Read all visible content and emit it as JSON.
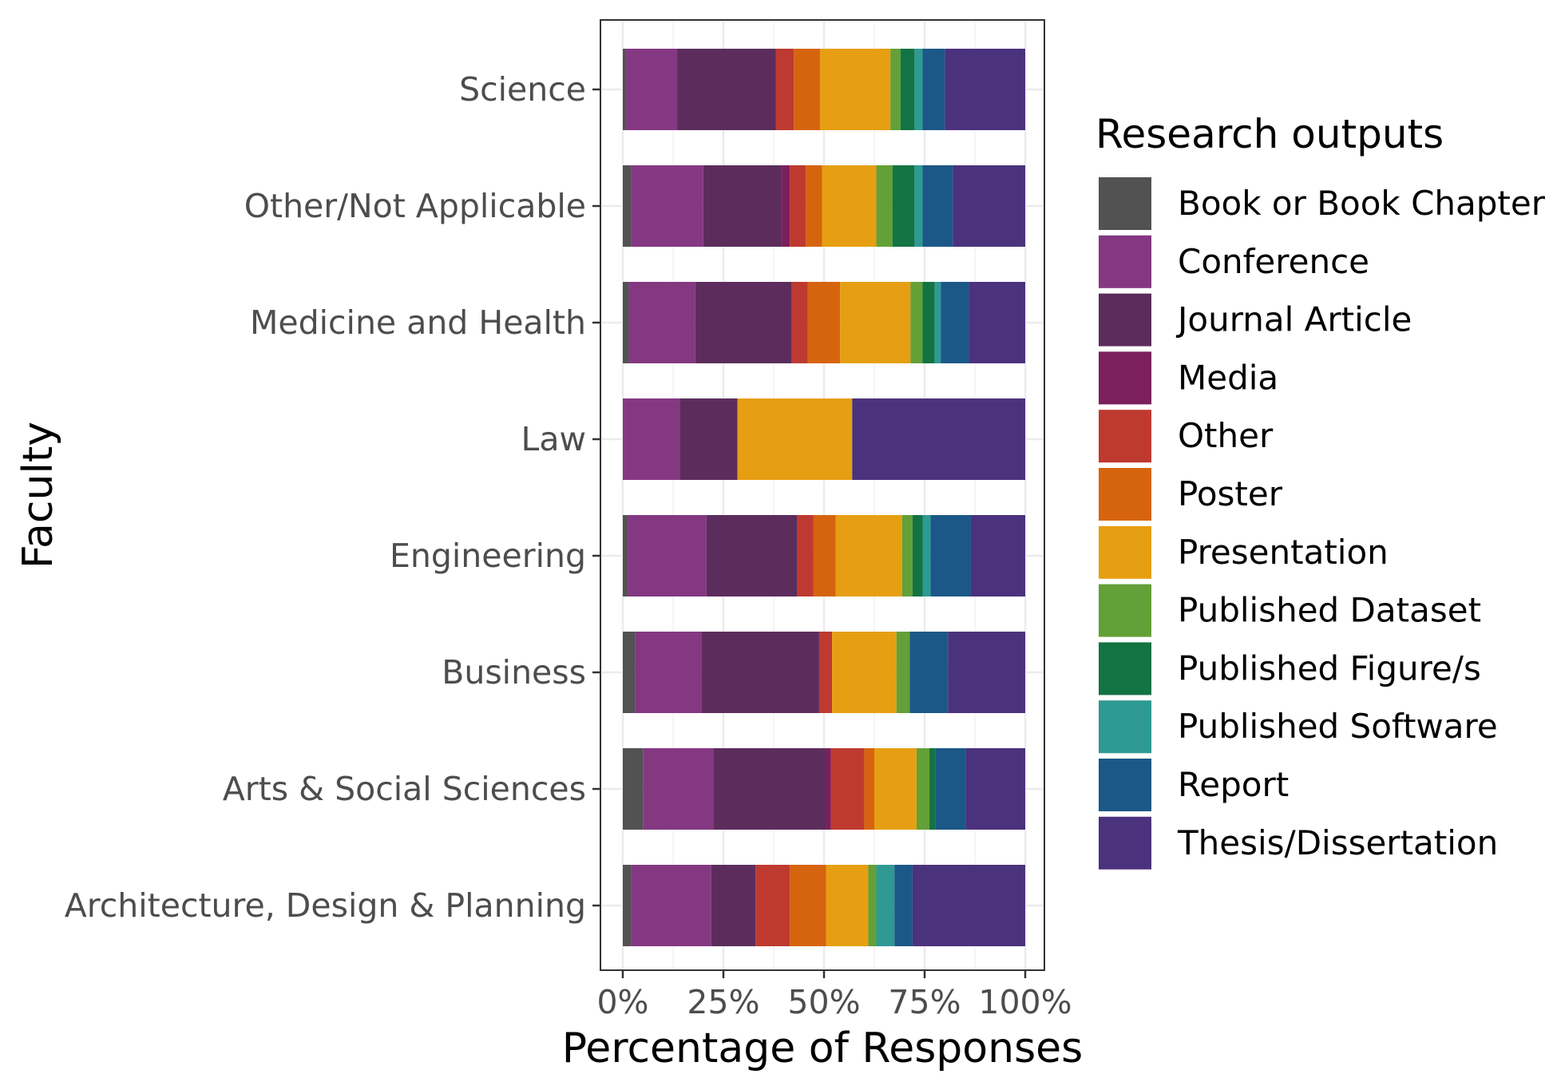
{
  "chart_data": {
    "type": "bar",
    "orientation": "horizontal",
    "stacked": "percent",
    "xlabel": "Percentage of Responses",
    "ylabel": "Faculty",
    "xlim": [
      0,
      100
    ],
    "x_ticks": [
      "0%",
      "25%",
      "50%",
      "75%",
      "100%"
    ],
    "grid": true,
    "legend_title": "Research outputs",
    "legend_position": "right",
    "categories": [
      "Science",
      "Other/Not Applicable",
      "Medicine and Health",
      "Law",
      "Engineering",
      "Business",
      "Arts & Social Sciences",
      "Architecture, Design & Planning"
    ],
    "series": [
      {
        "name": "Book or Book Chapter",
        "color": "#525252",
        "values": [
          0.8,
          2.0,
          1.5,
          0.0,
          1.2,
          3.0,
          5.0,
          2.0
        ]
      },
      {
        "name": "Conference",
        "color": "#843882",
        "values": [
          12.7,
          18.0,
          16.5,
          14.2,
          19.6,
          16.5,
          17.5,
          20.0
        ]
      },
      {
        "name": "Journal Article",
        "color": "#5c2d5c",
        "values": [
          24.5,
          19.5,
          24.0,
          14.3,
          22.6,
          29.3,
          28.0,
          11.0
        ]
      },
      {
        "name": "Media",
        "color": "#7b1f5d",
        "values": [
          0.0,
          2.0,
          0.0,
          0.0,
          0.0,
          0.0,
          1.2,
          0.0
        ]
      },
      {
        "name": "Other",
        "color": "#be3a30",
        "values": [
          4.5,
          4.0,
          4.0,
          0.0,
          4.0,
          3.2,
          8.3,
          8.5
        ]
      },
      {
        "name": "Poster",
        "color": "#d6640f",
        "values": [
          6.5,
          4.0,
          8.0,
          0.0,
          5.5,
          0.0,
          2.5,
          9.0
        ]
      },
      {
        "name": "Presentation",
        "color": "#e69f12",
        "values": [
          17.5,
          13.5,
          17.5,
          28.5,
          16.5,
          16.0,
          10.5,
          10.5
        ]
      },
      {
        "name": "Published Dataset",
        "color": "#63a037",
        "values": [
          2.5,
          4.0,
          3.0,
          0.0,
          2.6,
          3.3,
          3.2,
          2.0
        ]
      },
      {
        "name": "Published Figure/s",
        "color": "#147343",
        "values": [
          3.5,
          5.5,
          3.0,
          0.0,
          2.5,
          0.0,
          1.5,
          0.0
        ]
      },
      {
        "name": "Published Software",
        "color": "#2f9994",
        "values": [
          2.0,
          2.0,
          1.5,
          0.0,
          2.0,
          0.0,
          0.0,
          4.5
        ]
      },
      {
        "name": "Report",
        "color": "#1b5887",
        "values": [
          5.5,
          7.5,
          7.0,
          0.0,
          10.0,
          9.5,
          7.5,
          4.5
        ]
      },
      {
        "name": "Thesis/Dissertation",
        "color": "#4b327d",
        "values": [
          20.0,
          18.0,
          14.0,
          43.0,
          13.5,
          19.2,
          14.8,
          28.0
        ]
      }
    ]
  }
}
